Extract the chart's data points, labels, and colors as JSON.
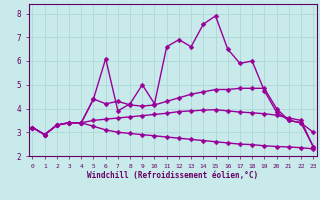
{
  "xlabel": "Windchill (Refroidissement éolien,°C)",
  "bg_color": "#c8eaea",
  "line_color": "#990099",
  "grid_color": "#aad4d4",
  "axis_color": "#660066",
  "text_color": "#660066",
  "ylim": [
    2.0,
    8.4
  ],
  "xlim": [
    -0.3,
    23.3
  ],
  "yticks": [
    2,
    3,
    4,
    5,
    6,
    7,
    8
  ],
  "xticks": [
    0,
    1,
    2,
    3,
    4,
    5,
    6,
    7,
    8,
    9,
    10,
    11,
    12,
    13,
    14,
    15,
    16,
    17,
    18,
    19,
    20,
    21,
    22,
    23
  ],
  "series": [
    [
      3.2,
      2.9,
      3.3,
      3.4,
      3.4,
      4.4,
      6.1,
      3.9,
      4.2,
      5.0,
      4.2,
      6.6,
      6.9,
      6.6,
      7.55,
      7.9,
      6.5,
      5.9,
      6.0,
      4.75,
      3.85,
      3.5,
      3.4,
      3.0
    ],
    [
      3.2,
      2.9,
      3.3,
      3.4,
      3.4,
      4.4,
      4.2,
      4.3,
      4.15,
      4.1,
      4.15,
      4.3,
      4.45,
      4.6,
      4.7,
      4.8,
      4.8,
      4.85,
      4.85,
      4.85,
      4.0,
      3.5,
      3.4,
      2.4
    ],
    [
      3.2,
      2.9,
      3.3,
      3.4,
      3.4,
      3.5,
      3.55,
      3.6,
      3.65,
      3.7,
      3.75,
      3.8,
      3.87,
      3.9,
      3.93,
      3.95,
      3.9,
      3.85,
      3.82,
      3.78,
      3.72,
      3.6,
      3.5,
      2.4
    ],
    [
      3.2,
      2.9,
      3.3,
      3.4,
      3.4,
      3.25,
      3.1,
      3.0,
      2.95,
      2.9,
      2.85,
      2.8,
      2.75,
      2.7,
      2.65,
      2.6,
      2.55,
      2.5,
      2.48,
      2.43,
      2.4,
      2.38,
      2.35,
      2.3
    ]
  ],
  "marker_size": 2.5,
  "line_width": 1.0
}
